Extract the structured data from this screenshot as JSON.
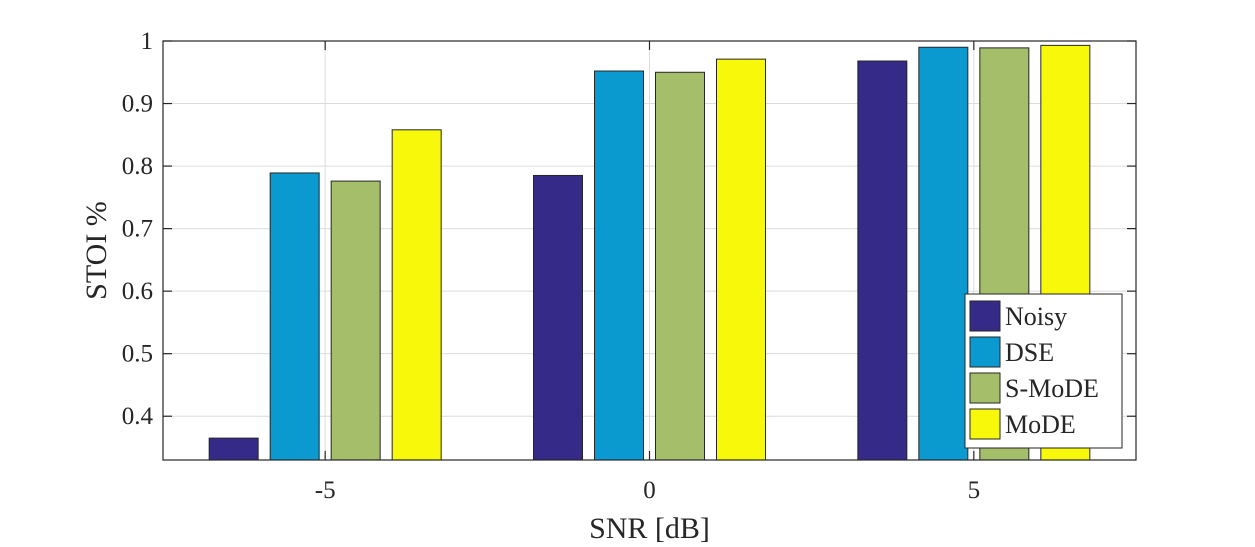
{
  "chart_data": {
    "type": "bar",
    "xlabel": "SNR [dB]",
    "ylabel": "STOI %",
    "categories": [
      "-5",
      "0",
      "5"
    ],
    "ylim": [
      0.33,
      1.0
    ],
    "yticks": [
      0.4,
      0.5,
      0.6,
      0.7,
      0.8,
      0.9,
      1
    ],
    "ytick_labels": [
      "0.4",
      "0.5",
      "0.6",
      "0.7",
      "0.8",
      "0.9",
      "1"
    ],
    "grid": true,
    "legend_position": "bottom-right",
    "series": [
      {
        "name": "Noisy",
        "color": "#352a87",
        "values": [
          0.365,
          0.785,
          0.968
        ]
      },
      {
        "name": "DSE",
        "color": "#0a9ad0",
        "values": [
          0.789,
          0.952,
          0.99
        ]
      },
      {
        "name": "S-MoDE",
        "color": "#a5be6a",
        "values": [
          0.776,
          0.95,
          0.989
        ]
      },
      {
        "name": "MoDE",
        "color": "#f8f80a",
        "values": [
          0.858,
          0.971,
          0.993
        ]
      }
    ]
  }
}
